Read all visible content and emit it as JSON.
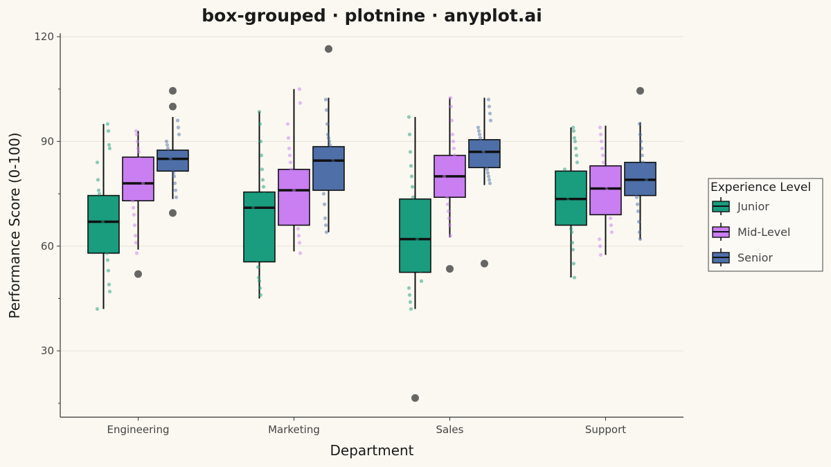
{
  "chart_data": {
    "type": "box",
    "title": "box-grouped · plotnine · anyplot.ai",
    "xlabel": "Department",
    "ylabel": "Performance Score (0-100)",
    "ylim": [
      11,
      121
    ],
    "yticks": [
      30,
      60,
      90,
      120
    ],
    "grid": true,
    "legend": {
      "title": "Experience Level",
      "position": "right"
    },
    "categories": [
      "Engineering",
      "Marketing",
      "Sales",
      "Support"
    ],
    "series": [
      {
        "name": "Junior",
        "color": "#1A9C7E",
        "boxes": [
          {
            "min": 42,
            "q1": 58,
            "median": 67,
            "q3": 74.5,
            "max": 95,
            "outliers": []
          },
          {
            "min": 45,
            "q1": 55.5,
            "median": 71,
            "q3": 75.5,
            "max": 98.5,
            "outliers": []
          },
          {
            "min": 42,
            "q1": 52.5,
            "median": 62,
            "q3": 73.5,
            "max": 97,
            "outliers": [
              16.5
            ]
          },
          {
            "min": 51,
            "q1": 66,
            "median": 73.5,
            "q3": 81.5,
            "max": 94,
            "outliers": []
          }
        ],
        "points": [
          [
            42,
            47,
            49,
            53,
            56,
            58,
            60,
            62,
            63,
            64,
            66,
            67,
            68,
            70,
            71,
            73,
            75,
            76,
            79,
            84,
            88,
            89,
            93,
            95
          ],
          [
            46,
            48,
            50,
            51,
            54,
            56,
            59,
            62,
            64,
            67,
            69,
            71,
            72,
            74,
            75,
            77,
            79,
            82,
            86,
            90,
            95,
            98.5
          ],
          [
            42,
            44,
            46,
            48,
            50,
            53,
            55,
            57,
            60,
            61,
            62,
            64,
            66,
            68,
            70,
            72,
            74,
            77,
            80,
            83,
            87,
            92,
            97
          ],
          [
            51,
            55,
            59,
            61,
            64,
            65,
            67,
            69,
            71,
            73,
            74,
            76,
            78,
            80,
            82,
            84,
            86,
            88,
            90,
            91,
            93,
            94
          ]
        ]
      },
      {
        "name": "Mid-Level",
        "color": "#C97EF1",
        "boxes": [
          {
            "min": 59,
            "q1": 73,
            "median": 78,
            "q3": 85.5,
            "max": 93,
            "outliers": [
              52
            ]
          },
          {
            "min": 58.5,
            "q1": 66,
            "median": 76,
            "q3": 82,
            "max": 105,
            "outliers": []
          },
          {
            "min": 62.5,
            "q1": 74,
            "median": 80,
            "q3": 86,
            "max": 102.5,
            "outliers": [
              53.5
            ]
          },
          {
            "min": 57.5,
            "q1": 69,
            "median": 76.5,
            "q3": 83,
            "max": 94.5,
            "outliers": []
          }
        ],
        "points": [
          [
            58,
            61,
            63,
            66,
            69,
            71,
            73,
            74,
            76,
            77,
            78,
            79,
            80,
            82,
            84,
            85,
            87,
            88,
            90,
            92,
            93
          ],
          [
            58,
            61,
            63,
            65,
            67,
            69,
            71,
            73,
            75,
            76,
            77,
            78,
            80,
            82,
            84,
            86,
            88,
            91,
            95,
            101,
            105
          ],
          [
            63,
            66,
            68,
            70,
            72,
            74,
            76,
            78,
            79,
            80,
            81,
            83,
            84,
            86,
            88,
            90,
            92,
            96,
            100,
            102.5
          ],
          [
            57.5,
            60,
            62,
            64,
            66,
            68,
            70,
            72,
            74,
            75,
            76,
            77,
            79,
            80,
            82,
            84,
            86,
            88,
            90,
            92,
            94
          ]
        ]
      },
      {
        "name": "Senior",
        "color": "#4E6FA8",
        "boxes": [
          {
            "min": 73.5,
            "q1": 81.5,
            "median": 85,
            "q3": 87.5,
            "max": 97,
            "outliers": [
              100,
              104.5,
              69.5
            ]
          },
          {
            "min": 64,
            "q1": 76,
            "median": 84.5,
            "q3": 88.5,
            "max": 102.5,
            "outliers": [
              116.5
            ]
          },
          {
            "min": 77.5,
            "q1": 82.5,
            "median": 87,
            "q3": 90.5,
            "max": 102.5,
            "outliers": [
              55
            ]
          },
          {
            "min": 62,
            "q1": 74.5,
            "median": 79,
            "q3": 84,
            "max": 95.5,
            "outliers": [
              104.5
            ]
          }
        ],
        "points": [
          [
            74,
            76,
            78,
            80,
            81,
            82,
            83,
            84,
            85,
            85.5,
            86,
            87,
            88,
            89,
            90,
            92,
            94,
            96
          ],
          [
            64,
            66,
            68,
            72,
            75,
            77,
            79,
            80,
            82,
            84,
            85,
            86,
            87,
            88,
            89,
            90,
            91,
            92,
            95,
            99,
            102
          ],
          [
            78,
            79,
            80,
            81,
            82,
            83,
            84,
            85,
            86,
            87,
            87.5,
            88,
            89,
            90,
            91,
            92,
            93,
            94,
            96,
            98,
            100,
            102
          ],
          [
            62,
            64,
            67,
            70,
            72,
            74,
            75,
            76,
            77,
            78,
            79,
            80,
            81,
            82,
            83,
            84,
            86,
            88,
            90,
            92,
            95
          ]
        ]
      }
    ]
  }
}
